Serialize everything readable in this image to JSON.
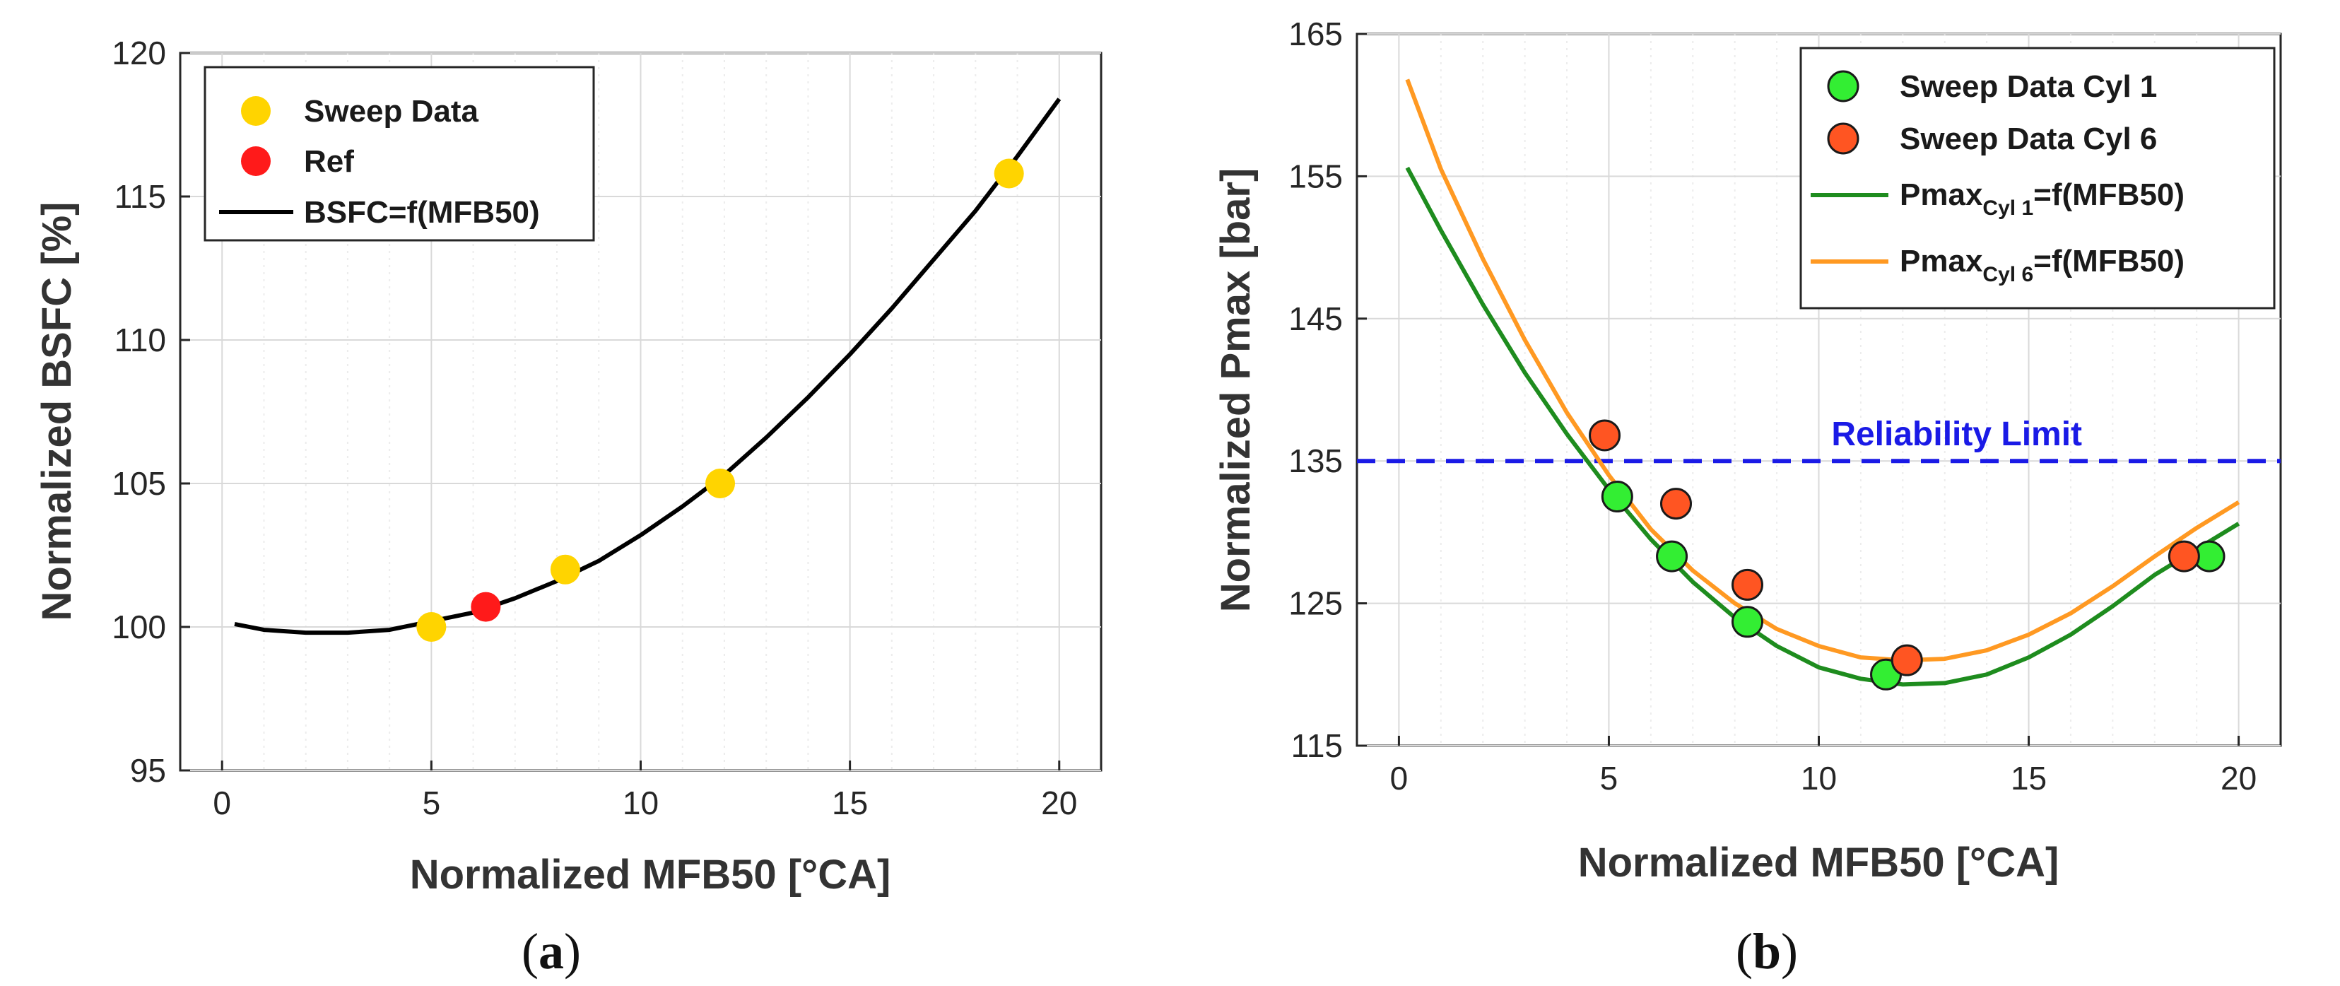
{
  "chart_data": [
    {
      "type": "scatter",
      "panel": "a",
      "caption": "(a)",
      "xlabel": "Normalized MFB50 [°CA]",
      "ylabel": "Normalized BSFC [%]",
      "xlim": [
        -1,
        21
      ],
      "ylim": [
        95,
        120
      ],
      "xticks": [
        0,
        5,
        10,
        15,
        20
      ],
      "yticks": [
        95,
        100,
        105,
        110,
        115,
        120
      ],
      "grid": true,
      "legend_position": "top-left",
      "series": [
        {
          "name": "Sweep Data",
          "kind": "points",
          "color": "#FFD400",
          "x": [
            5.0,
            8.2,
            11.9,
            18.8
          ],
          "y": [
            100.0,
            102.0,
            105.0,
            115.8
          ]
        },
        {
          "name": "Ref",
          "kind": "points",
          "color": "#FF1A1A",
          "x": [
            6.3
          ],
          "y": [
            100.7
          ]
        },
        {
          "name": "BSFC=f(MFB50)",
          "kind": "line",
          "color": "#000000",
          "x": [
            0.3,
            1,
            2,
            3,
            4,
            5,
            6,
            7,
            8,
            9,
            10,
            11,
            12,
            13,
            14,
            15,
            16,
            17,
            18,
            19,
            20
          ],
          "y": [
            100.1,
            99.9,
            99.8,
            99.8,
            99.9,
            100.2,
            100.5,
            101.0,
            101.6,
            102.3,
            103.2,
            104.2,
            105.3,
            106.6,
            108.0,
            109.5,
            111.1,
            112.8,
            114.5,
            116.4,
            118.4
          ]
        }
      ]
    },
    {
      "type": "scatter",
      "panel": "b",
      "caption": "(b)",
      "xlabel": "Normalized MFB50 [°CA]",
      "ylabel": "Normalized Pmax [bar]",
      "xlim": [
        -1,
        21
      ],
      "ylim": [
        115,
        165
      ],
      "xticks": [
        0,
        5,
        10,
        15,
        20
      ],
      "yticks": [
        115,
        125,
        135,
        145,
        155,
        165
      ],
      "grid": true,
      "legend_position": "top-right",
      "annotation": {
        "text": "Reliability Limit",
        "y": 135,
        "color": "#1A1AE6"
      },
      "series": [
        {
          "name": "Sweep Data Cyl 1",
          "kind": "points",
          "color": "#33EE33",
          "x": [
            5.2,
            6.5,
            8.3,
            11.6,
            19.3
          ],
          "y": [
            132.5,
            128.3,
            123.7,
            120.0,
            128.3
          ]
        },
        {
          "name": "Sweep Data Cyl 6",
          "kind": "points",
          "color": "#FF5522",
          "x": [
            4.9,
            6.6,
            8.3,
            12.1,
            18.7
          ],
          "y": [
            136.8,
            132.0,
            126.3,
            121.0,
            128.3
          ]
        },
        {
          "name": "Pmax",
          "subscript": "Cyl 1",
          "suffix": "=f(MFB50)",
          "kind": "line",
          "color": "#1E8C1E",
          "x": [
            0.2,
            1,
            2,
            3,
            4,
            5,
            6,
            7,
            8,
            9,
            10,
            11,
            12,
            13,
            14,
            15,
            16,
            17,
            18,
            19,
            20
          ],
          "y": [
            155.6,
            151.2,
            146.0,
            141.2,
            136.9,
            133.0,
            129.5,
            126.5,
            124.0,
            122.0,
            120.5,
            119.7,
            119.3,
            119.4,
            120.0,
            121.2,
            122.8,
            124.8,
            127.0,
            128.8,
            130.6
          ]
        },
        {
          "name": "Pmax",
          "subscript": "Cyl 6",
          "suffix": "=f(MFB50)",
          "kind": "line",
          "color": "#FF9922",
          "x": [
            0.2,
            1,
            2,
            3,
            4,
            5,
            6,
            7,
            8,
            9,
            10,
            11,
            12,
            13,
            14,
            15,
            16,
            17,
            18,
            19,
            20
          ],
          "y": [
            161.8,
            155.5,
            149.2,
            143.5,
            138.4,
            134.0,
            130.2,
            127.3,
            125.0,
            123.2,
            122.0,
            121.2,
            121.0,
            121.1,
            121.7,
            122.8,
            124.3,
            126.2,
            128.3,
            130.3,
            132.1
          ]
        }
      ]
    }
  ]
}
